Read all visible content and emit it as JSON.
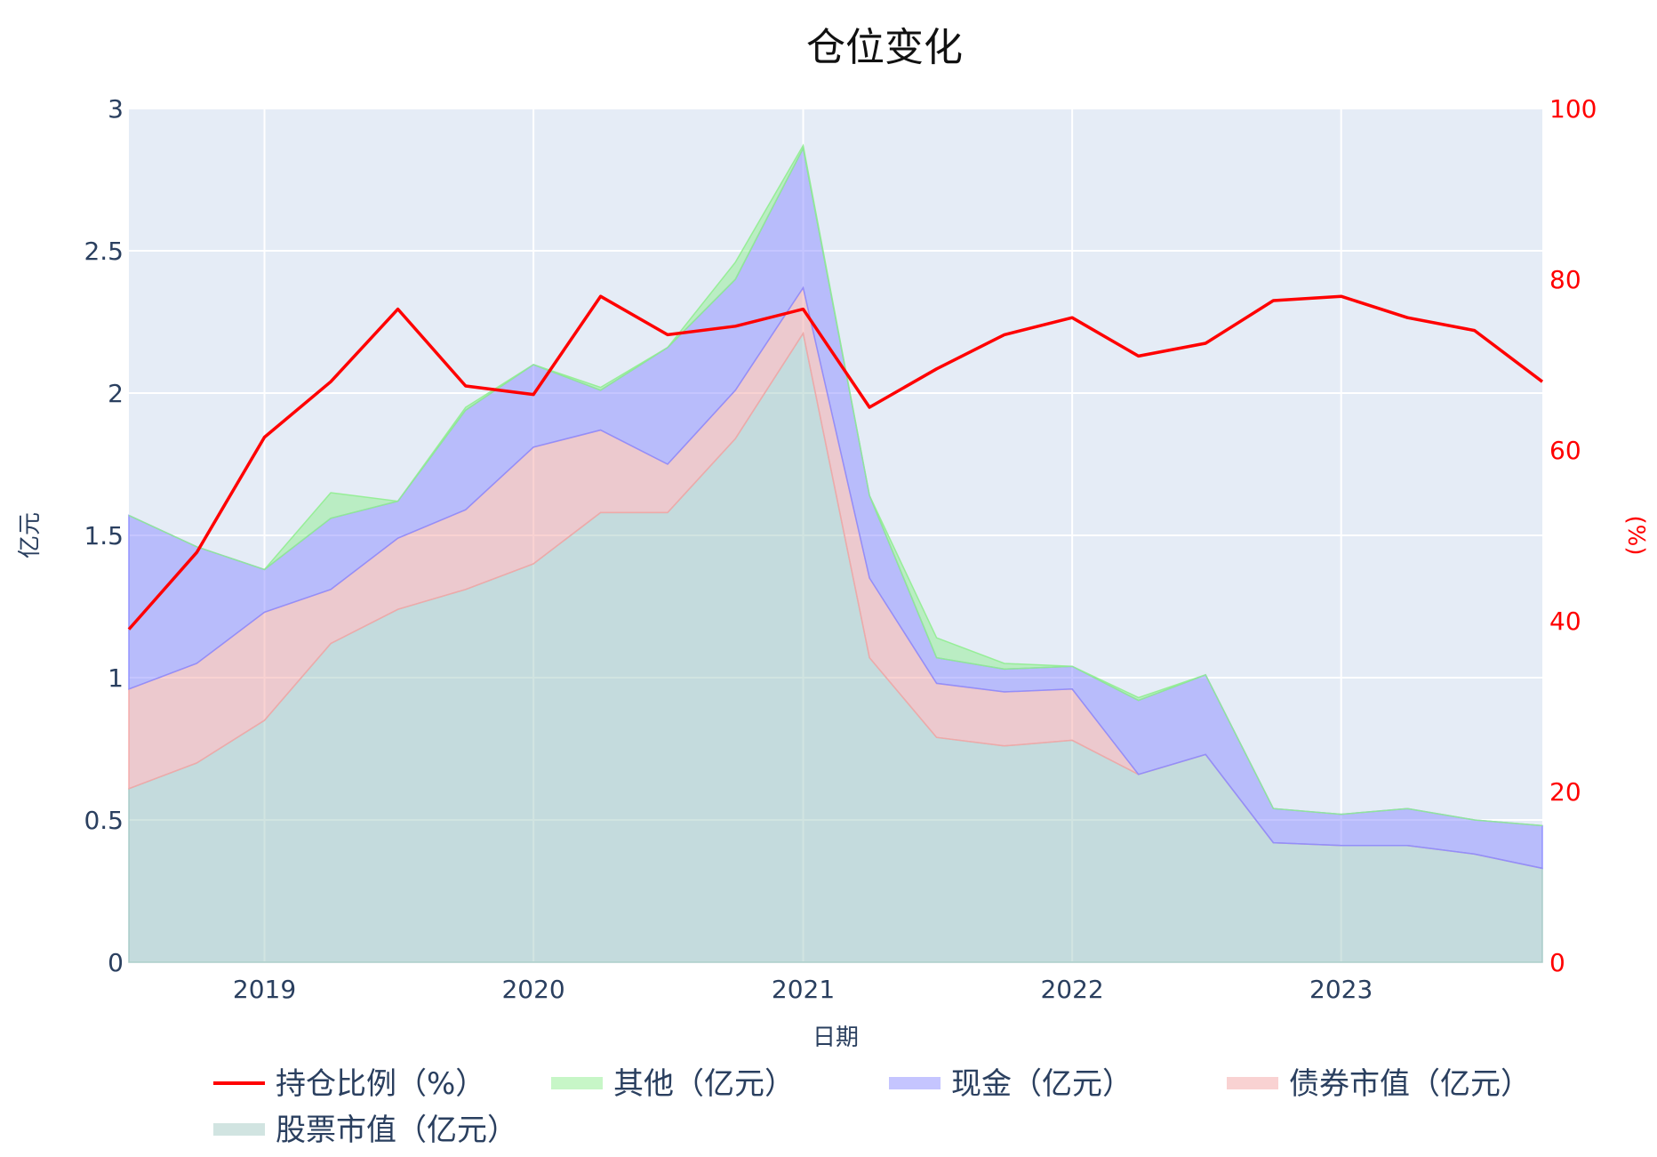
{
  "chart_data": {
    "type": "area",
    "title": "仓位变化",
    "xlabel": "日期",
    "ylabel": "亿元",
    "y2label": "(%)",
    "x": [
      "2018-07-01",
      "2018-10-01",
      "2019-01-01",
      "2019-04-01",
      "2019-07-01",
      "2019-10-01",
      "2020-01-01",
      "2020-04-01",
      "2020-07-01",
      "2020-10-01",
      "2021-01-01",
      "2021-04-01",
      "2021-07-01",
      "2021-10-01",
      "2022-01-01",
      "2022-04-01",
      "2022-07-01",
      "2022-10-01",
      "2023-01-01",
      "2023-04-01",
      "2023-07-01",
      "2023-10-01"
    ],
    "x_range": [
      "2018-07-01",
      "2023-10-01"
    ],
    "x_ticks": [
      {
        "date": "2019-01-01",
        "label": "2019"
      },
      {
        "date": "2020-01-01",
        "label": "2020"
      },
      {
        "date": "2021-01-01",
        "label": "2021"
      },
      {
        "date": "2022-01-01",
        "label": "2022"
      },
      {
        "date": "2023-01-01",
        "label": "2023"
      }
    ],
    "ylim": [
      0,
      3
    ],
    "y_ticks": [
      "0",
      "0.5",
      "1",
      "1.5",
      "2",
      "2.5",
      "3"
    ],
    "y2lim": [
      0,
      100
    ],
    "y2_ticks": [
      "0",
      "20",
      "40",
      "60",
      "80",
      "100"
    ],
    "stack_order": [
      "股票市值（亿元）",
      "债券市值（亿元）",
      "现金（亿元）",
      "其他（亿元）"
    ],
    "series": [
      {
        "name": "持仓比例（%）",
        "type": "line",
        "axis": "y2",
        "color": "#ff0000",
        "values": [
          39,
          48,
          61.5,
          68,
          76.5,
          67.5,
          66.5,
          78,
          73.5,
          74.5,
          76.5,
          65,
          69.5,
          73.5,
          75.5,
          71,
          72.5,
          77.5,
          78,
          75.5,
          74,
          68
        ]
      },
      {
        "name": "其他（亿元）",
        "type": "area",
        "color": "#90ee90",
        "values": [
          0,
          0,
          0,
          0.09,
          0,
          0.01,
          0,
          0.01,
          0,
          0.06,
          0.01,
          0,
          0.07,
          0.02,
          0,
          0.01,
          0,
          0,
          0,
          0,
          0,
          0
        ]
      },
      {
        "name": "现金（亿元）",
        "type": "area",
        "color": "#8c8cff",
        "values": [
          0.61,
          0.41,
          0.15,
          0.25,
          0.13,
          0.35,
          0.29,
          0.14,
          0.41,
          0.39,
          0.49,
          0.29,
          0.09,
          0.08,
          0.08,
          0.26,
          0.28,
          0.12,
          0.11,
          0.13,
          0.12,
          0.15
        ]
      },
      {
        "name": "债券市值（亿元）",
        "type": "area",
        "color": "#f4a6a6",
        "values": [
          0.35,
          0.35,
          0.38,
          0.19,
          0.25,
          0.28,
          0.41,
          0.29,
          0.17,
          0.17,
          0.16,
          0.28,
          0.19,
          0.19,
          0.18,
          0,
          0,
          0,
          0,
          0,
          0,
          0
        ]
      },
      {
        "name": "股票市值（亿元）",
        "type": "area",
        "color": "#a3c9c4",
        "values": [
          0.61,
          0.7,
          0.85,
          1.12,
          1.24,
          1.31,
          1.4,
          1.58,
          1.58,
          1.84,
          2.21,
          1.07,
          0.79,
          0.76,
          0.78,
          0.66,
          0.73,
          0.42,
          0.41,
          0.41,
          0.38,
          0.33
        ]
      }
    ],
    "grid": true,
    "legend_position": "bottom"
  }
}
